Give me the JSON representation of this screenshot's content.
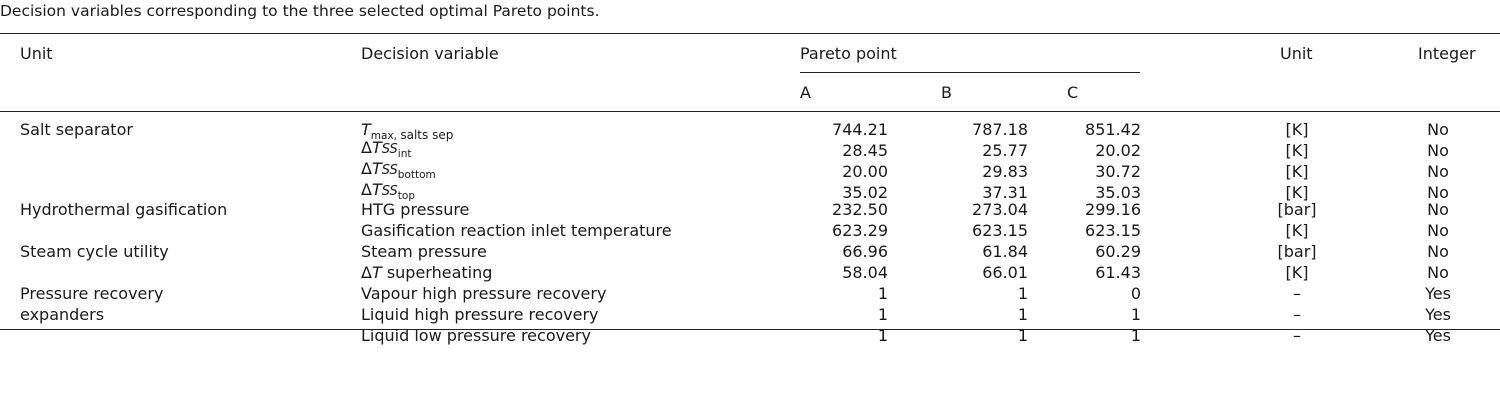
{
  "caption": "Decision variables corresponding to the three selected optimal Pareto points.",
  "header": {
    "unit_group": "Unit",
    "decision_variable": "Decision variable",
    "pareto_point": "Pareto point",
    "unit": "Unit",
    "integer": "Integer",
    "points": [
      "A",
      "B",
      "C"
    ]
  },
  "math": {
    "T": "T",
    "delta": "Δ",
    "SS": "SS",
    "max": "max",
    "salts_sep": "salts sep",
    "int": "int",
    "bottom": "bottom",
    "top": "top",
    "superheating": "superheating"
  },
  "groups": {
    "salt_separator": "Salt separator",
    "hydrothermal_gasification": "Hydrothermal gasification",
    "steam_cycle_utility": "Steam cycle utility",
    "pressure_recovery_line1": "Pressure recovery",
    "pressure_recovery_line2": "expanders"
  },
  "rows": [
    {
      "var": "",
      "a": "744.21",
      "b": "787.18",
      "c": "851.42",
      "unit": "[K]",
      "integer": "No"
    },
    {
      "var": "",
      "a": "28.45",
      "b": "25.77",
      "c": "20.02",
      "unit": "[K]",
      "integer": "No"
    },
    {
      "var": "",
      "a": "20.00",
      "b": "29.83",
      "c": "30.72",
      "unit": "[K]",
      "integer": "No"
    },
    {
      "var": "",
      "a": "35.02",
      "b": "37.31",
      "c": "35.03",
      "unit": "[K]",
      "integer": "No"
    },
    {
      "var": "HTG pressure",
      "a": "232.50",
      "b": "273.04",
      "c": "299.16",
      "unit": "[bar]",
      "integer": "No"
    },
    {
      "var": "Gasification reaction inlet temperature",
      "a": "623.29",
      "b": "623.15",
      "c": "623.15",
      "unit": "[K]",
      "integer": "No"
    },
    {
      "var": "Steam pressure",
      "a": "66.96",
      "b": "61.84",
      "c": "60.29",
      "unit": "[bar]",
      "integer": "No"
    },
    {
      "var": "",
      "a": "58.04",
      "b": "66.01",
      "c": "61.43",
      "unit": "[K]",
      "integer": "No"
    },
    {
      "var": "Vapour high pressure recovery",
      "a": "1",
      "b": "1",
      "c": "0",
      "unit": "–",
      "integer": "Yes"
    },
    {
      "var": "Liquid high pressure recovery",
      "a": "1",
      "b": "1",
      "c": "1",
      "unit": "–",
      "integer": "Yes"
    },
    {
      "var": "Liquid low pressure recovery",
      "a": "1",
      "b": "1",
      "c": "1",
      "unit": "–",
      "integer": "Yes"
    }
  ]
}
